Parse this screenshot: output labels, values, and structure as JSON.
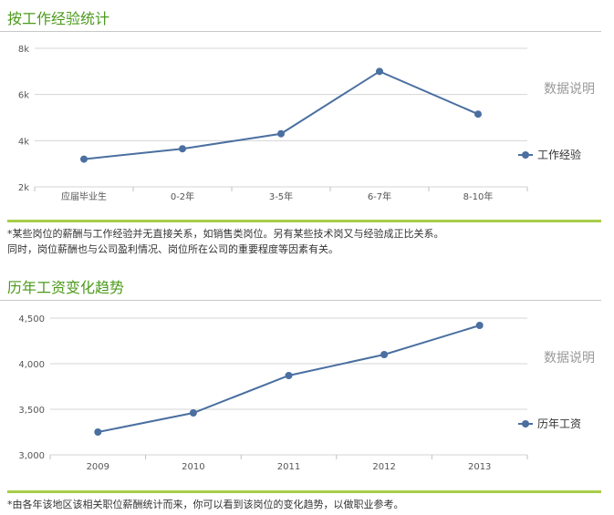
{
  "sections": [
    {
      "title": "按工作经验统计",
      "data_note": "数据说明",
      "notes": [
        "*某些岗位的薪酬与工作经验并无直接关系，如销售类岗位。另有某些技术岗又与经验成正比关系。",
        "同时，岗位薪酬也与公司盈利情况、岗位所在公司的重要程度等因素有关。"
      ]
    },
    {
      "title": "历年工资变化趋势",
      "data_note": "数据说明",
      "notes": [
        "*由各年该地区该相关职位薪酬统计而来，你可以看到该岗位的变化趋势，以做职业参考。"
      ]
    }
  ],
  "chart_data": [
    {
      "type": "line",
      "categories": [
        "应届毕业生",
        "0-2年",
        "3-5年",
        "6-7年",
        "8-10年"
      ],
      "series": [
        {
          "name": "工作经验",
          "values": [
            3200,
            3650,
            4300,
            7000,
            5150
          ]
        }
      ],
      "yticks": [
        "2k",
        "4k",
        "6k",
        "8k"
      ],
      "ytick_values": [
        2000,
        4000,
        6000,
        8000
      ],
      "ylim": [
        2000,
        8000
      ],
      "grid": true,
      "legend": "right",
      "line_color": "#4a6fa0"
    },
    {
      "type": "line",
      "categories": [
        "2009",
        "2010",
        "2011",
        "2012",
        "2013"
      ],
      "series": [
        {
          "name": "历年工资",
          "values": [
            3250,
            3460,
            3870,
            4100,
            4420
          ]
        }
      ],
      "yticks": [
        "3,000",
        "3,500",
        "4,000",
        "4,500"
      ],
      "ytick_values": [
        3000,
        3500,
        4000,
        4500
      ],
      "ylim": [
        3000,
        4500
      ],
      "grid": true,
      "legend": "right",
      "line_color": "#4a6fa0"
    }
  ]
}
